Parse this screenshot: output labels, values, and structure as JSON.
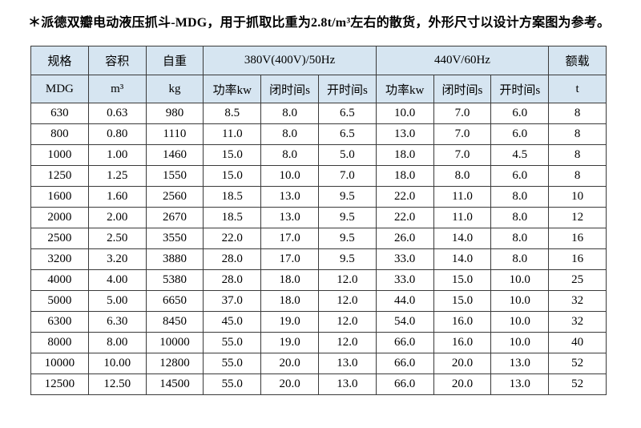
{
  "title": "＊派德双瓣电动液压抓斗-MDG，用于抓取比重为2.8t/m³左右的散货，外形尺寸以设计方案图为参考。",
  "colors": {
    "header_bg": "#d6e5f1",
    "border": "#3a3a3a",
    "text": "#000000",
    "page_bg": "#ffffff"
  },
  "table": {
    "header_row1": {
      "spec": "规格",
      "capacity": "容积",
      "weight": "自重",
      "hz50": "380V(400V)/50Hz",
      "hz60": "440V/60Hz",
      "rated_load": "额载"
    },
    "header_row2": {
      "spec": "MDG",
      "capacity": "m³",
      "weight": "kg",
      "power50": "功率kw",
      "close50": "闭时间s",
      "open50": "开时间s",
      "power60": "功率kw",
      "close60": "闭时间s",
      "open60": "开时间s",
      "rated_load": "t"
    },
    "rows": [
      [
        "630",
        "0.63",
        "980",
        "8.5",
        "8.0",
        "6.5",
        "10.0",
        "7.0",
        "6.0",
        "8"
      ],
      [
        "800",
        "0.80",
        "1110",
        "11.0",
        "8.0",
        "6.5",
        "13.0",
        "7.0",
        "6.0",
        "8"
      ],
      [
        "1000",
        "1.00",
        "1460",
        "15.0",
        "8.0",
        "5.0",
        "18.0",
        "7.0",
        "4.5",
        "8"
      ],
      [
        "1250",
        "1.25",
        "1550",
        "15.0",
        "10.0",
        "7.0",
        "18.0",
        "8.0",
        "6.0",
        "8"
      ],
      [
        "1600",
        "1.60",
        "2560",
        "18.5",
        "13.0",
        "9.5",
        "22.0",
        "11.0",
        "8.0",
        "10"
      ],
      [
        "2000",
        "2.00",
        "2670",
        "18.5",
        "13.0",
        "9.5",
        "22.0",
        "11.0",
        "8.0",
        "12"
      ],
      [
        "2500",
        "2.50",
        "3550",
        "22.0",
        "17.0",
        "9.5",
        "26.0",
        "14.0",
        "8.0",
        "16"
      ],
      [
        "3200",
        "3.20",
        "3880",
        "28.0",
        "17.0",
        "9.5",
        "33.0",
        "14.0",
        "8.0",
        "16"
      ],
      [
        "4000",
        "4.00",
        "5380",
        "28.0",
        "18.0",
        "12.0",
        "33.0",
        "15.0",
        "10.0",
        "25"
      ],
      [
        "5000",
        "5.00",
        "6650",
        "37.0",
        "18.0",
        "12.0",
        "44.0",
        "15.0",
        "10.0",
        "32"
      ],
      [
        "6300",
        "6.30",
        "8450",
        "45.0",
        "19.0",
        "12.0",
        "54.0",
        "16.0",
        "10.0",
        "32"
      ],
      [
        "8000",
        "8.00",
        "10000",
        "55.0",
        "19.0",
        "12.0",
        "66.0",
        "16.0",
        "10.0",
        "40"
      ],
      [
        "10000",
        "10.00",
        "12800",
        "55.0",
        "20.0",
        "13.0",
        "66.0",
        "20.0",
        "13.0",
        "52"
      ],
      [
        "12500",
        "12.50",
        "14500",
        "55.0",
        "20.0",
        "13.0",
        "66.0",
        "20.0",
        "13.0",
        "52"
      ]
    ]
  }
}
